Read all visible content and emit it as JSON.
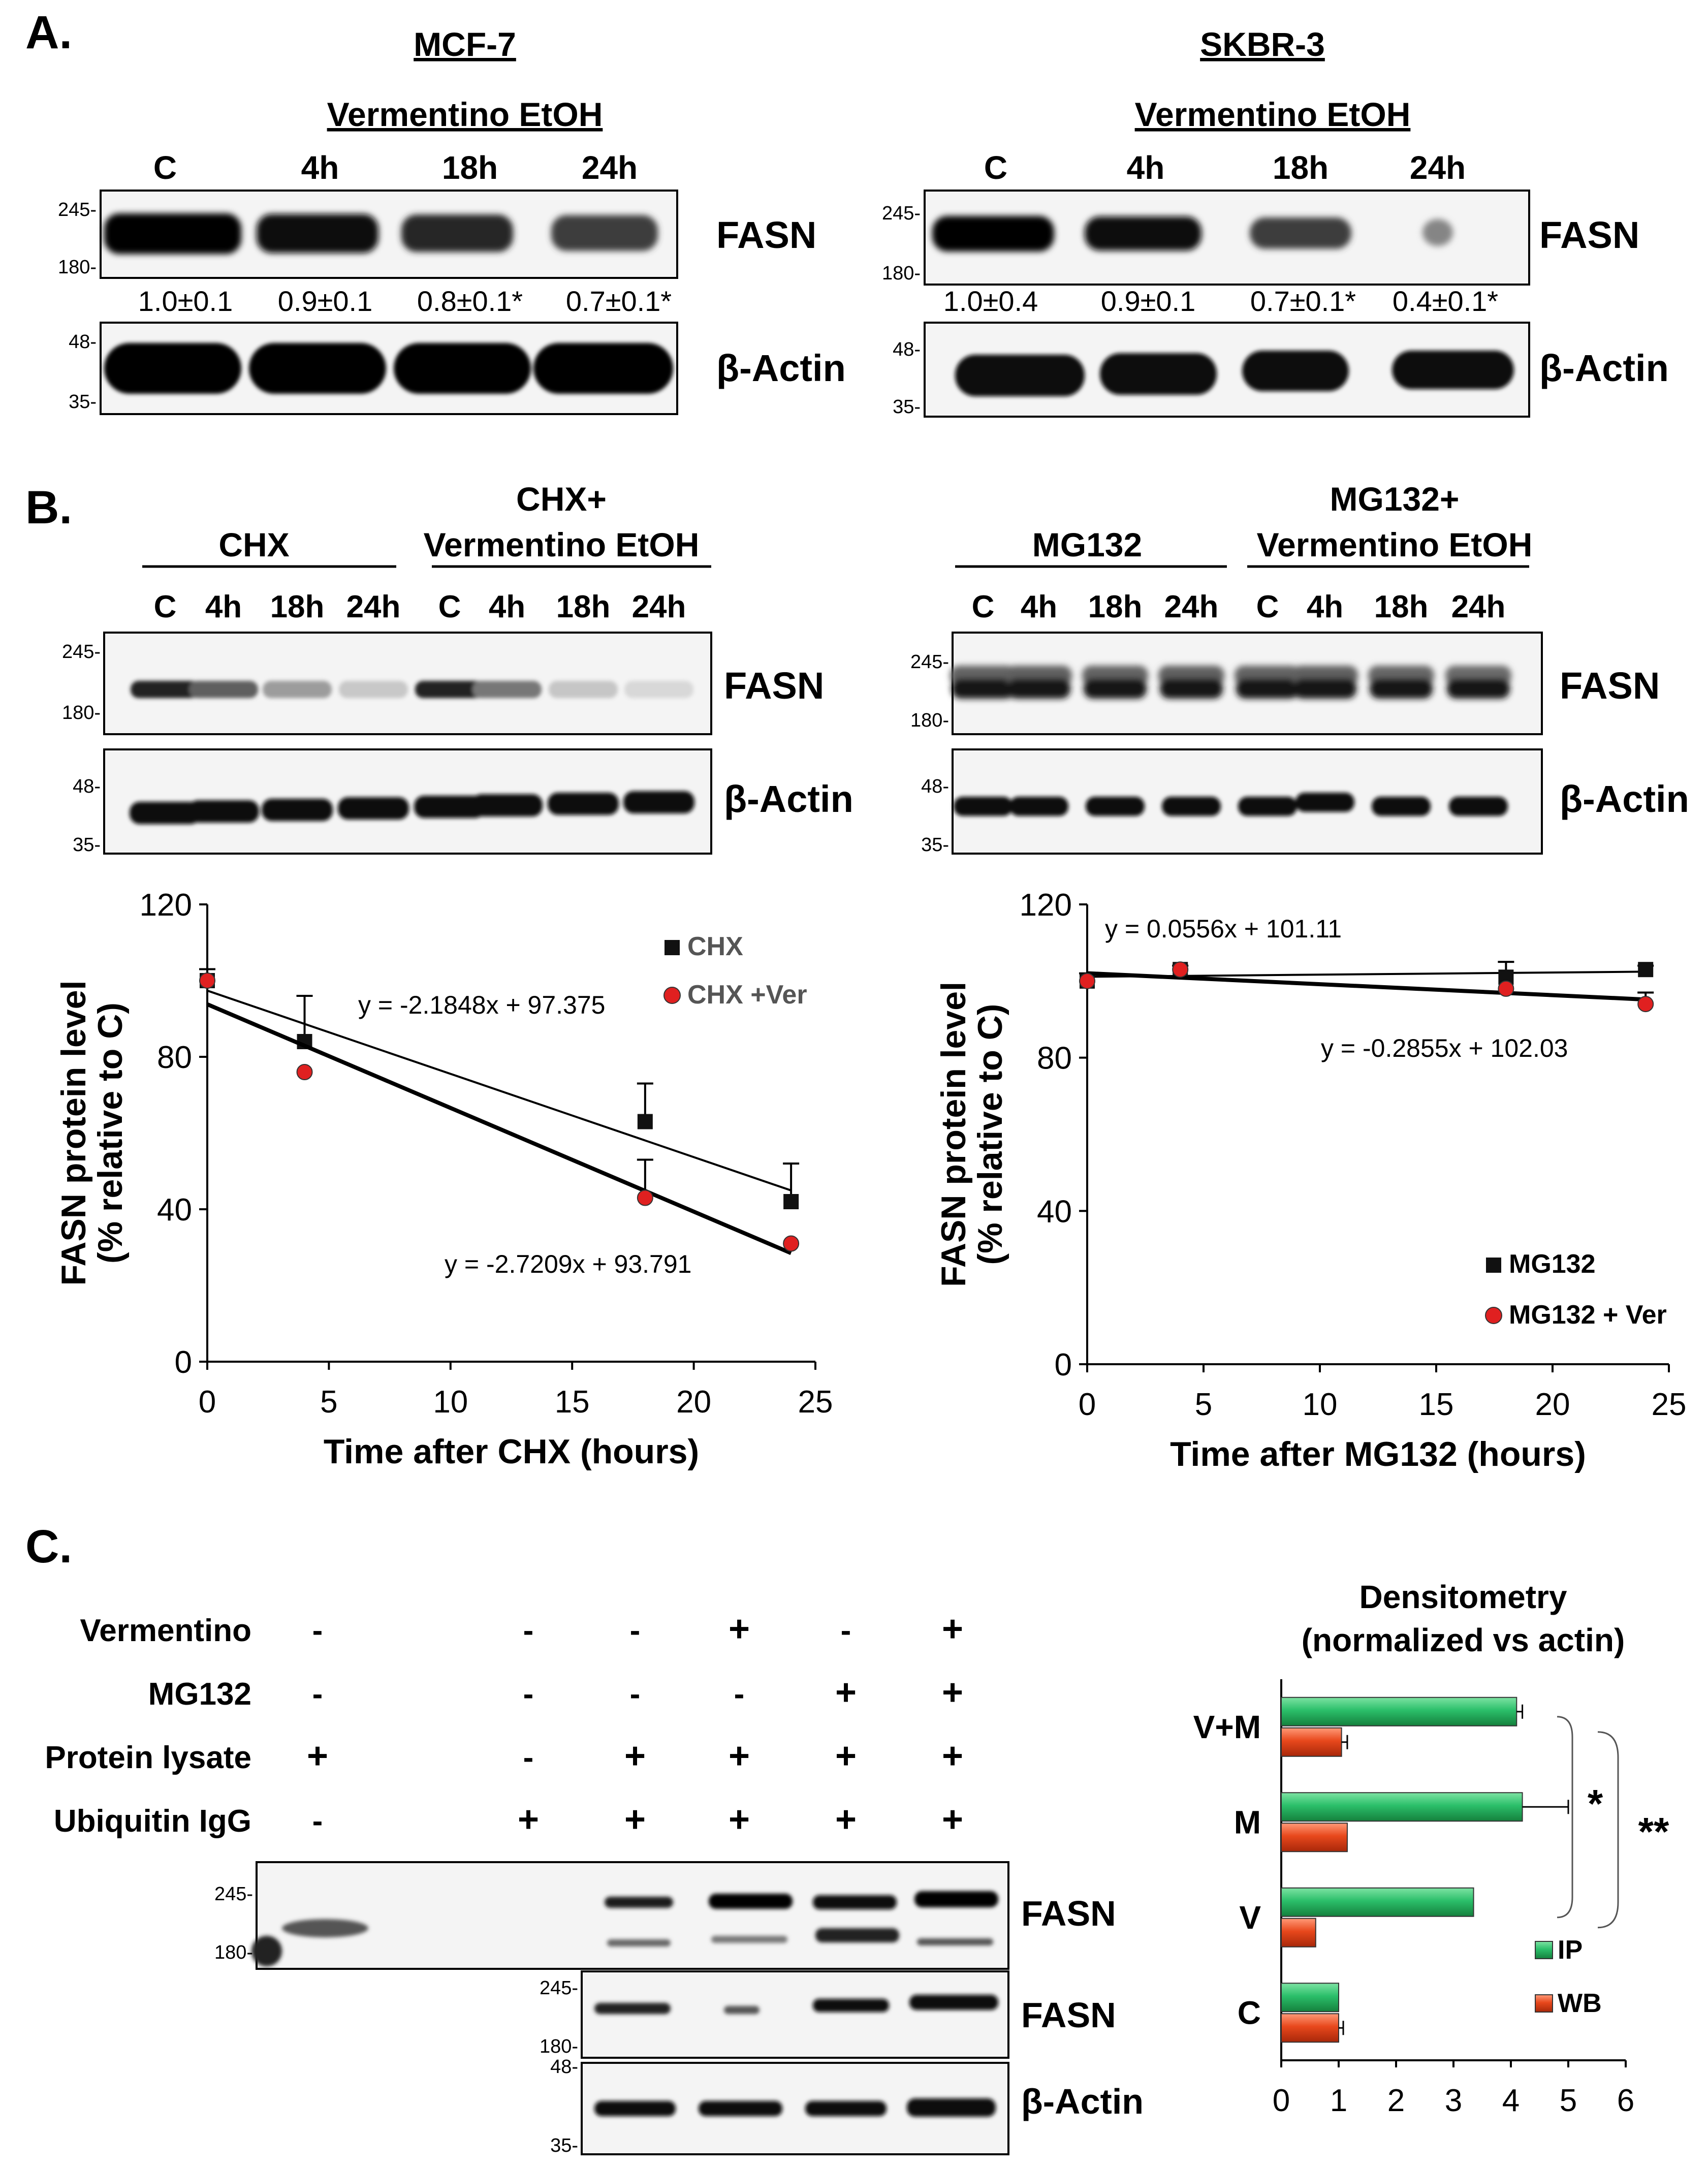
{
  "panelA": {
    "label": "A.",
    "treatment": "Vermentino EtOH",
    "lanes": [
      "C",
      "4h",
      "18h",
      "24h"
    ],
    "fasn_label": "FASN",
    "actin_label": "β-Actin",
    "markers": {
      "fasn_top": "245-",
      "fasn_bottom": "180-",
      "actin_top": "48-",
      "actin_bottom": "35-"
    },
    "mcf7": {
      "title": "MCF-7",
      "fasn_quant": [
        "1.0±0.1",
        "0.9±0.1",
        "0.8±0.1*",
        "0.7±0.1*"
      ],
      "fasn_intensity": [
        1.0,
        0.9,
        0.8,
        0.7
      ]
    },
    "skbr3": {
      "title": "SKBR-3",
      "fasn_quant": [
        "1.0±0.4",
        "0.9±0.1",
        "0.7±0.1*",
        "0.4±0.1*"
      ],
      "fasn_intensity": [
        1.0,
        0.9,
        0.7,
        0.4
      ]
    }
  },
  "panelB": {
    "label": "B.",
    "lanes": [
      "C",
      "4h",
      "18h",
      "24h",
      "C",
      "4h",
      "18h",
      "24h"
    ],
    "fasn_label": "FASN",
    "actin_label": "β-Actin",
    "chx_blot": {
      "group1": "CHX",
      "group2_line1": "CHX+",
      "group2_line2": "Vermentino EtOH"
    },
    "mg132_blot": {
      "group1": "MG132",
      "group2_line1": "MG132+",
      "group2_line2": "Vermentino EtOH"
    }
  },
  "panelC": {
    "label": "C.",
    "conditions": {
      "labels": [
        "Vermentino",
        "MG132",
        "Protein lysate",
        "Ubiquitin IgG"
      ],
      "rows": [
        [
          "-",
          "-",
          "-",
          "+",
          "-",
          "+"
        ],
        [
          "-",
          "-",
          "-",
          "-",
          "+",
          "+"
        ],
        [
          "+",
          "-",
          "+",
          "+",
          "+",
          "+"
        ],
        [
          "-",
          "+",
          "+",
          "+",
          "+",
          "+"
        ]
      ]
    },
    "blot_labels": {
      "ip_fasn": "FASN",
      "wb_fasn": "FASN",
      "actin": "β-Actin"
    },
    "densitometry_title_line1": "Densitometry",
    "densitometry_title_line2": "(normalized vs actin)",
    "significance": [
      "*",
      "**"
    ]
  },
  "chart_data": [
    {
      "type": "scatter",
      "title": "",
      "xlabel": "Time after CHX (hours)",
      "ylabel_line1": "FASN protein level",
      "ylabel_line2": "(% relative to C)",
      "xlim": [
        0,
        25
      ],
      "ylim": [
        0,
        120
      ],
      "xticks": [
        0,
        5,
        10,
        15,
        20,
        25
      ],
      "yticks": [
        0,
        40,
        80,
        120
      ],
      "series": [
        {
          "name": "CHX",
          "marker": "square",
          "color": "#111111",
          "x": [
            0,
            4,
            18,
            24
          ],
          "y": [
            100,
            84,
            63,
            42
          ],
          "err": [
            3,
            12,
            10,
            10
          ],
          "fit": {
            "slope": -2.1848,
            "intercept": 97.375
          },
          "equation": "y = -2.1848x + 97.375"
        },
        {
          "name": "CHX +Ver",
          "marker": "circle",
          "color": "#e02020",
          "x": [
            0,
            4,
            18,
            24
          ],
          "y": [
            100,
            76,
            43,
            31
          ],
          "err": [
            0,
            0,
            10,
            0
          ],
          "fit": {
            "slope": -2.7209,
            "intercept": 93.791
          },
          "equation": "y = -2.7209x + 93.791"
        }
      ]
    },
    {
      "type": "scatter",
      "title": "",
      "xlabel": "Time after MG132 (hours)",
      "ylabel_line1": "FASN protein level",
      "ylabel_line2": "(% relative to C)",
      "xlim": [
        0,
        25
      ],
      "ylim": [
        0,
        120
      ],
      "xticks": [
        0,
        5,
        10,
        15,
        20,
        25
      ],
      "yticks": [
        0,
        40,
        80,
        120
      ],
      "series": [
        {
          "name": "MG132",
          "marker": "square",
          "color": "#111111",
          "x": [
            0,
            4,
            18,
            24
          ],
          "y": [
            100,
            103,
            101,
            103
          ],
          "err": [
            2,
            1,
            4,
            1
          ],
          "fit": {
            "slope": 0.0556,
            "intercept": 101.11
          },
          "equation": "y = 0.0556x + 101.11"
        },
        {
          "name": "MG132 + Ver",
          "marker": "circle",
          "color": "#e02020",
          "x": [
            0,
            4,
            18,
            24
          ],
          "y": [
            100,
            103,
            98,
            94
          ],
          "err": [
            0,
            0,
            0,
            3
          ],
          "fit": {
            "slope": -0.2855,
            "intercept": 102.03
          },
          "equation": "y = -0.2855x + 102.03"
        }
      ]
    },
    {
      "type": "bar",
      "orientation": "horizontal",
      "title": "Densitometry (normalized vs actin)",
      "categories": [
        "V+M",
        "M",
        "V",
        "C"
      ],
      "xlim": [
        0,
        6
      ],
      "xticks": [
        0,
        1,
        2,
        3,
        4,
        5,
        6
      ],
      "series": [
        {
          "name": "IP",
          "color": "#2bbf6a",
          "values": [
            4.1,
            4.2,
            3.35,
            1.0
          ],
          "err": [
            0.1,
            0.8,
            0,
            0
          ]
        },
        {
          "name": "WB",
          "color": "#e8481c",
          "values": [
            1.05,
            1.15,
            0.6,
            1.0
          ],
          "err": [
            0.1,
            0,
            0,
            0.08
          ]
        }
      ]
    }
  ]
}
